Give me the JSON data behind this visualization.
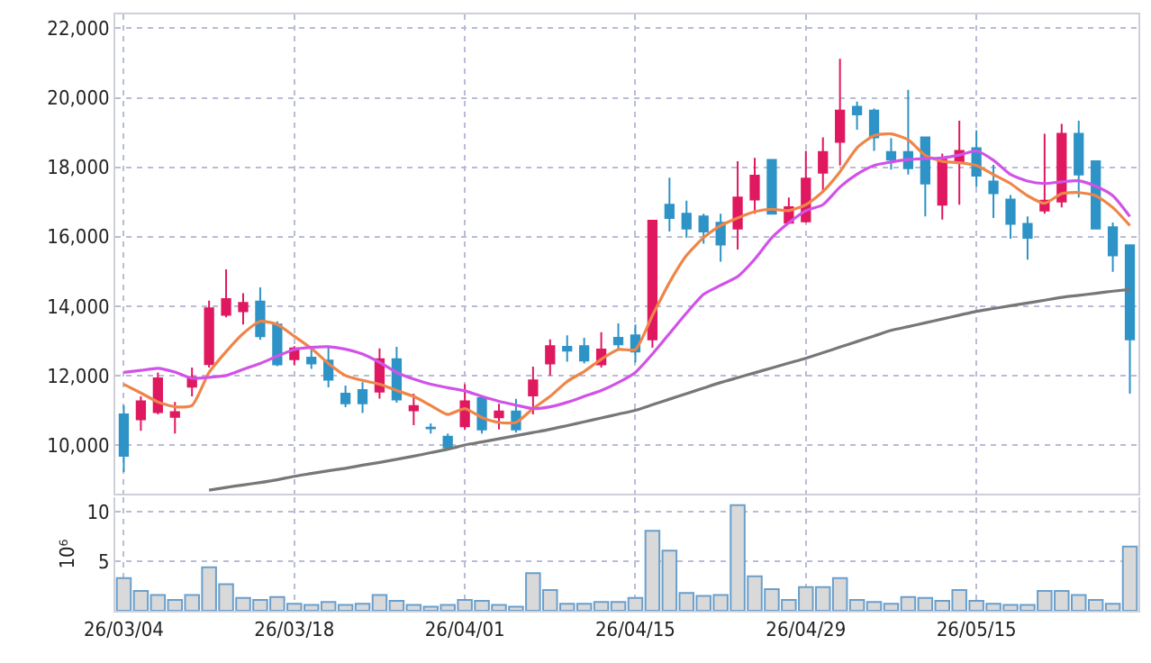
{
  "chart_data": [
    {
      "type": "candlestick",
      "categories": [
        null,
        null,
        null,
        null,
        null,
        null,
        null,
        null,
        null,
        null,
        null,
        null,
        null,
        null,
        null,
        null,
        null,
        null,
        null,
        null,
        null,
        null,
        null,
        null,
        null,
        null,
        null,
        null,
        null,
        null,
        null,
        null,
        null,
        null,
        null,
        null,
        null,
        null,
        null,
        null,
        null,
        null,
        null,
        null,
        null,
        null,
        null,
        null,
        null,
        null,
        null,
        null,
        null,
        null,
        null,
        null,
        null,
        null,
        null,
        null
      ],
      "ohlc": [
        [
          10880,
          11140,
          9220,
          9690
        ],
        [
          10740,
          11400,
          10410,
          11260
        ],
        [
          10950,
          12090,
          10880,
          11920
        ],
        [
          10810,
          11240,
          10330,
          10950
        ],
        [
          11680,
          12230,
          11400,
          11950
        ],
        [
          12330,
          14160,
          12230,
          13940
        ],
        [
          13750,
          15060,
          13680,
          14200
        ],
        [
          13850,
          14370,
          13470,
          14090
        ],
        [
          14130,
          14540,
          13030,
          13130
        ],
        [
          13470,
          13560,
          12270,
          12320
        ],
        [
          12470,
          12850,
          12300,
          12780
        ],
        [
          12520,
          12830,
          12190,
          12350
        ],
        [
          12430,
          12830,
          11660,
          11880
        ],
        [
          11480,
          11710,
          11090,
          11200
        ],
        [
          11580,
          11810,
          10920,
          11200
        ],
        [
          11540,
          12780,
          11340,
          12470
        ],
        [
          12470,
          12830,
          11220,
          11310
        ],
        [
          11000,
          11480,
          10570,
          11120
        ],
        [
          10500,
          10620,
          10330,
          10480
        ],
        [
          10240,
          10330,
          9850,
          9930
        ],
        [
          10540,
          11750,
          10450,
          11260
        ],
        [
          11350,
          11430,
          10330,
          10450
        ],
        [
          10800,
          11190,
          10450,
          10970
        ],
        [
          10970,
          11330,
          10360,
          10450
        ],
        [
          11430,
          12260,
          10880,
          11860
        ],
        [
          12350,
          13040,
          12000,
          12850
        ],
        [
          12830,
          13160,
          12400,
          12720
        ],
        [
          12850,
          13090,
          12350,
          12430
        ],
        [
          12320,
          13250,
          12230,
          12750
        ],
        [
          13090,
          13500,
          12750,
          12900
        ],
        [
          13160,
          13470,
          12380,
          12690
        ],
        [
          13040,
          16460,
          12800,
          16460
        ],
        [
          16920,
          17700,
          16150,
          16540
        ],
        [
          16660,
          17040,
          15970,
          16230
        ],
        [
          16580,
          16660,
          15800,
          16150
        ],
        [
          16400,
          16660,
          15280,
          15770
        ],
        [
          16230,
          18170,
          15630,
          17130
        ],
        [
          17070,
          18270,
          16660,
          17760
        ],
        [
          18210,
          18240,
          16660,
          16660
        ],
        [
          16400,
          17130,
          16370,
          16850
        ],
        [
          16440,
          18470,
          16400,
          17670
        ],
        [
          17840,
          18860,
          17270,
          18440
        ],
        [
          18730,
          21120,
          18050,
          19630
        ],
        [
          19740,
          19890,
          19080,
          19520
        ],
        [
          19630,
          19690,
          18470,
          18860
        ],
        [
          18440,
          18830,
          17930,
          18220
        ],
        [
          18440,
          20230,
          17790,
          17970
        ],
        [
          18860,
          18860,
          16580,
          17530
        ],
        [
          16920,
          18390,
          16490,
          18220
        ],
        [
          18170,
          19340,
          16920,
          18470
        ],
        [
          18550,
          19060,
          17430,
          17760
        ],
        [
          17590,
          18070,
          16540,
          17250
        ],
        [
          17070,
          17200,
          15940,
          16370
        ],
        [
          16370,
          16580,
          15340,
          15970
        ],
        [
          16750,
          18960,
          16660,
          17040
        ],
        [
          17010,
          19250,
          16840,
          18960
        ],
        [
          18960,
          19340,
          17130,
          17790
        ],
        [
          18170,
          18170,
          16230,
          16230
        ],
        [
          16270,
          16410,
          14990,
          15460
        ],
        [
          15750,
          15750,
          11480,
          13040
        ]
      ],
      "colors": [
        "#2e93c6",
        "#e0185f",
        "#e0185f",
        "#e0185f",
        "#e0185f",
        "#e0185f",
        "#e0185f",
        "#e0185f",
        "#2e93c6",
        "#2e93c6",
        "#e0185f",
        "#2e93c6",
        "#2e93c6",
        "#2e93c6",
        "#2e93c6",
        "#e0185f",
        "#2e93c6",
        "#e0185f",
        "#2e93c6",
        "#2e93c6",
        "#e0185f",
        "#2e93c6",
        "#e0185f",
        "#2e93c6",
        "#e0185f",
        "#e0185f",
        "#2e93c6",
        "#2e93c6",
        "#e0185f",
        "#2e93c6",
        "#2e93c6",
        "#e0185f",
        "#2e93c6",
        "#2e93c6",
        "#2e93c6",
        "#2e93c6",
        "#e0185f",
        "#e0185f",
        "#2e93c6",
        "#e0185f",
        "#e0185f",
        "#e0185f",
        "#e0185f",
        "#2e93c6",
        "#2e93c6",
        "#2e93c6",
        "#2e93c6",
        "#2e93c6",
        "#e0185f",
        "#e0185f",
        "#2e93c6",
        "#2e93c6",
        "#2e93c6",
        "#2e93c6",
        "#e0185f",
        "#e0185f",
        "#2e93c6",
        "#2e93c6",
        "#2e93c6",
        "#2e93c6"
      ],
      "series": [
        {
          "type": "line",
          "color": "#ef8548",
          "values": [
            11750,
            11500,
            11240,
            11100,
            11140,
            12090,
            12690,
            13210,
            13560,
            13470,
            13130,
            12780,
            12350,
            12000,
            11860,
            11750,
            11570,
            11400,
            11140,
            10880,
            11050,
            10790,
            10650,
            10650,
            11050,
            11400,
            11830,
            12120,
            12470,
            12750,
            12750,
            13730,
            14680,
            15460,
            15970,
            16320,
            16540,
            16720,
            16790,
            16750,
            16920,
            17300,
            17870,
            18560,
            18910,
            18960,
            18790,
            18340,
            18170,
            18130,
            18050,
            17790,
            17530,
            17180,
            16960,
            17240,
            17270,
            17180,
            16840,
            16320
          ]
        },
        {
          "type": "line",
          "color": "#d152e8",
          "values": [
            12090,
            12150,
            12210,
            12100,
            11920,
            11950,
            12000,
            12180,
            12350,
            12560,
            12750,
            12810,
            12830,
            12760,
            12620,
            12380,
            12090,
            11900,
            11750,
            11650,
            11560,
            11400,
            11260,
            11150,
            11050,
            11100,
            11230,
            11400,
            11570,
            11800,
            12090,
            12620,
            13210,
            13800,
            14340,
            14600,
            14850,
            15350,
            15970,
            16400,
            16750,
            16920,
            17430,
            17800,
            18050,
            18150,
            18220,
            18250,
            18270,
            18350,
            18470,
            18200,
            17790,
            17600,
            17530,
            17580,
            17610,
            17450,
            17180,
            16580
          ]
        },
        {
          "type": "line",
          "color": "#777777",
          "values": [
            null,
            null,
            null,
            null,
            null,
            8700,
            8780,
            8850,
            8920,
            9000,
            9100,
            9180,
            9260,
            9330,
            9420,
            9500,
            9590,
            9680,
            9780,
            9880,
            10000,
            10090,
            10180,
            10270,
            10360,
            10450,
            10560,
            10670,
            10780,
            10890,
            11000,
            11160,
            11320,
            11480,
            11640,
            11800,
            11940,
            12080,
            12220,
            12360,
            12500,
            12660,
            12820,
            12980,
            13140,
            13300,
            13410,
            13520,
            13630,
            13740,
            13850,
            13930,
            14010,
            14090,
            14170,
            14250,
            14310,
            14370,
            14430,
            14480
          ]
        }
      ],
      "ylim": [
        8600,
        22400
      ],
      "yticks": [
        {
          "value": 10000,
          "label": "10,000"
        },
        {
          "value": 12000,
          "label": "12,000"
        },
        {
          "value": 14000,
          "label": "14,000"
        },
        {
          "value": 16000,
          "label": "16,000"
        },
        {
          "value": 18000,
          "label": "18,000"
        },
        {
          "value": 20000,
          "label": "20,000"
        },
        {
          "value": 22000,
          "label": "22,000"
        }
      ],
      "grid": true,
      "tick_labels": "y"
    },
    {
      "type": "bar",
      "categories": [
        "26/03/04",
        null,
        null,
        null,
        null,
        null,
        null,
        null,
        null,
        null,
        "26/03/18",
        null,
        null,
        null,
        null,
        null,
        null,
        null,
        null,
        null,
        "26/04/01",
        null,
        null,
        null,
        null,
        null,
        null,
        null,
        null,
        null,
        "26/04/15",
        null,
        null,
        null,
        null,
        null,
        null,
        null,
        null,
        null,
        "26/04/29",
        null,
        null,
        null,
        null,
        null,
        null,
        null,
        null,
        null,
        "26/05/15",
        null,
        null,
        null,
        null,
        null,
        null,
        null,
        null,
        null
      ],
      "values": [
        3.3,
        2.0,
        1.6,
        1.1,
        1.6,
        4.4,
        2.7,
        1.3,
        1.1,
        1.4,
        0.7,
        0.6,
        0.9,
        0.6,
        0.7,
        1.6,
        1.0,
        0.6,
        0.4,
        0.6,
        1.1,
        1.0,
        0.6,
        0.4,
        3.8,
        2.1,
        0.7,
        0.7,
        0.9,
        0.9,
        1.3,
        8.1,
        6.1,
        1.8,
        1.5,
        1.6,
        10.7,
        3.5,
        2.2,
        1.1,
        2.4,
        2.4,
        3.3,
        1.1,
        0.9,
        0.7,
        1.4,
        1.3,
        1.0,
        2.1,
        1.0,
        0.7,
        0.6,
        0.6,
        2.0,
        2.0,
        1.6,
        1.1,
        0.7,
        6.5
      ],
      "color": "#d9d9d9",
      "ylabel": "10⁶",
      "ylim": [
        0,
        11.5
      ],
      "yticks": [
        5,
        10
      ],
      "grid": true
    }
  ]
}
